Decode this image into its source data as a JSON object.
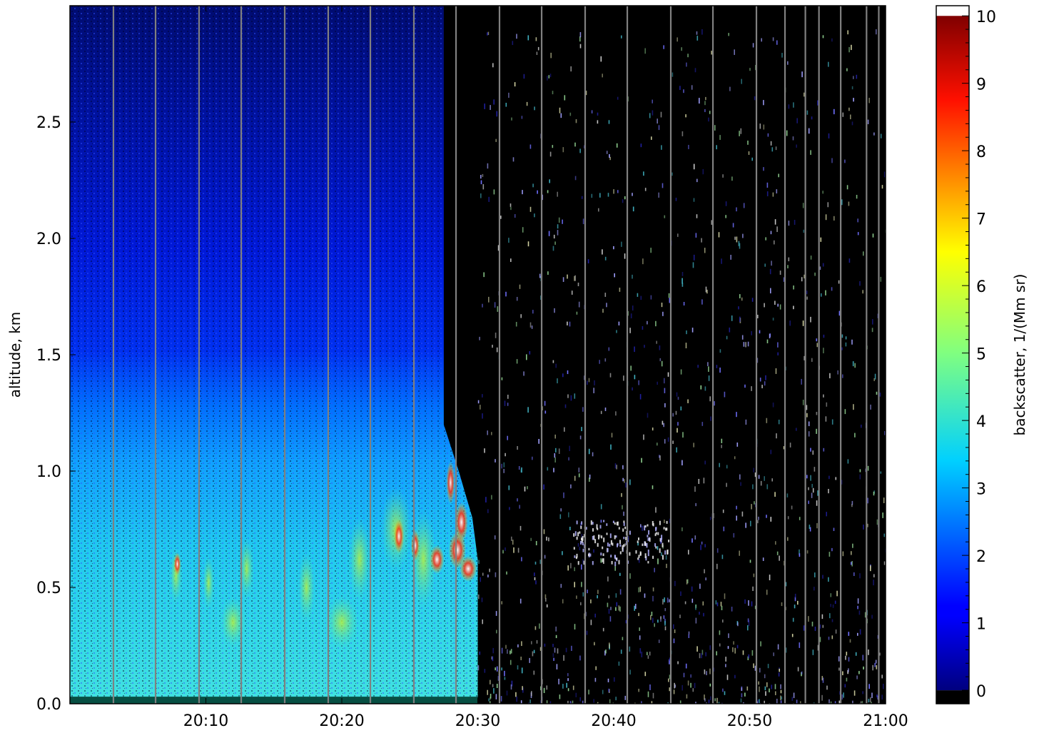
{
  "chart_data": {
    "type": "heatmap",
    "title": "",
    "xlabel": "",
    "ylabel": "altitude, km",
    "x_tick_labels": [
      "20:10",
      "20:20",
      "20:30",
      "20:40",
      "20:50",
      "21:00"
    ],
    "x_ticks_minutes_after_20_00": [
      10,
      20,
      30,
      40,
      50,
      60
    ],
    "x_range_clock": [
      "20:00",
      "21:00"
    ],
    "ylim": [
      0.0,
      3.0
    ],
    "y_tick_labels": [
      "0.0",
      "0.5",
      "1.0",
      "1.5",
      "2.0",
      "2.5"
    ],
    "y_ticks": [
      0.0,
      0.5,
      1.0,
      1.5,
      2.0,
      2.5
    ],
    "colorbar": {
      "label": "backscatter, 1/(Mm sr)",
      "range": [
        0,
        10
      ],
      "tick_labels": [
        "0",
        "1",
        "2",
        "3",
        "4",
        "5",
        "6",
        "7",
        "8",
        "9",
        "10"
      ],
      "ticks": [
        0,
        1,
        2,
        3,
        4,
        5,
        6,
        7,
        8,
        9,
        10
      ],
      "colormap": "jet",
      "under_color": "#000000",
      "over_color": "#ffffff"
    },
    "features": {
      "aerosol_layer": {
        "start": "20:00",
        "end": "20:30",
        "top_km": 1.3,
        "value_range": [
          2,
          5
        ]
      },
      "strong_backscatter": {
        "start": "20:23",
        "end": "20:30",
        "altitude_km": [
          0.55,
          1.1
        ],
        "value_range": [
          7,
          10
        ]
      },
      "weak_layer": {
        "start": "20:37",
        "end": "20:44",
        "altitude_km": 0.7
      },
      "no_signal_after": "20:30"
    },
    "gaps_minutes_after_20_00": [
      3.2,
      6.3,
      9.5,
      12.6,
      15.8,
      19.0,
      22.1,
      25.3,
      28.4,
      31.6,
      34.7,
      37.9,
      41.0,
      44.2,
      47.3,
      50.5,
      52.6,
      54.1,
      55.1,
      56.7,
      58.6,
      59.5
    ],
    "colors": {
      "frame": "#000000",
      "gap_line": "#808080",
      "background": "#ffffff"
    }
  }
}
